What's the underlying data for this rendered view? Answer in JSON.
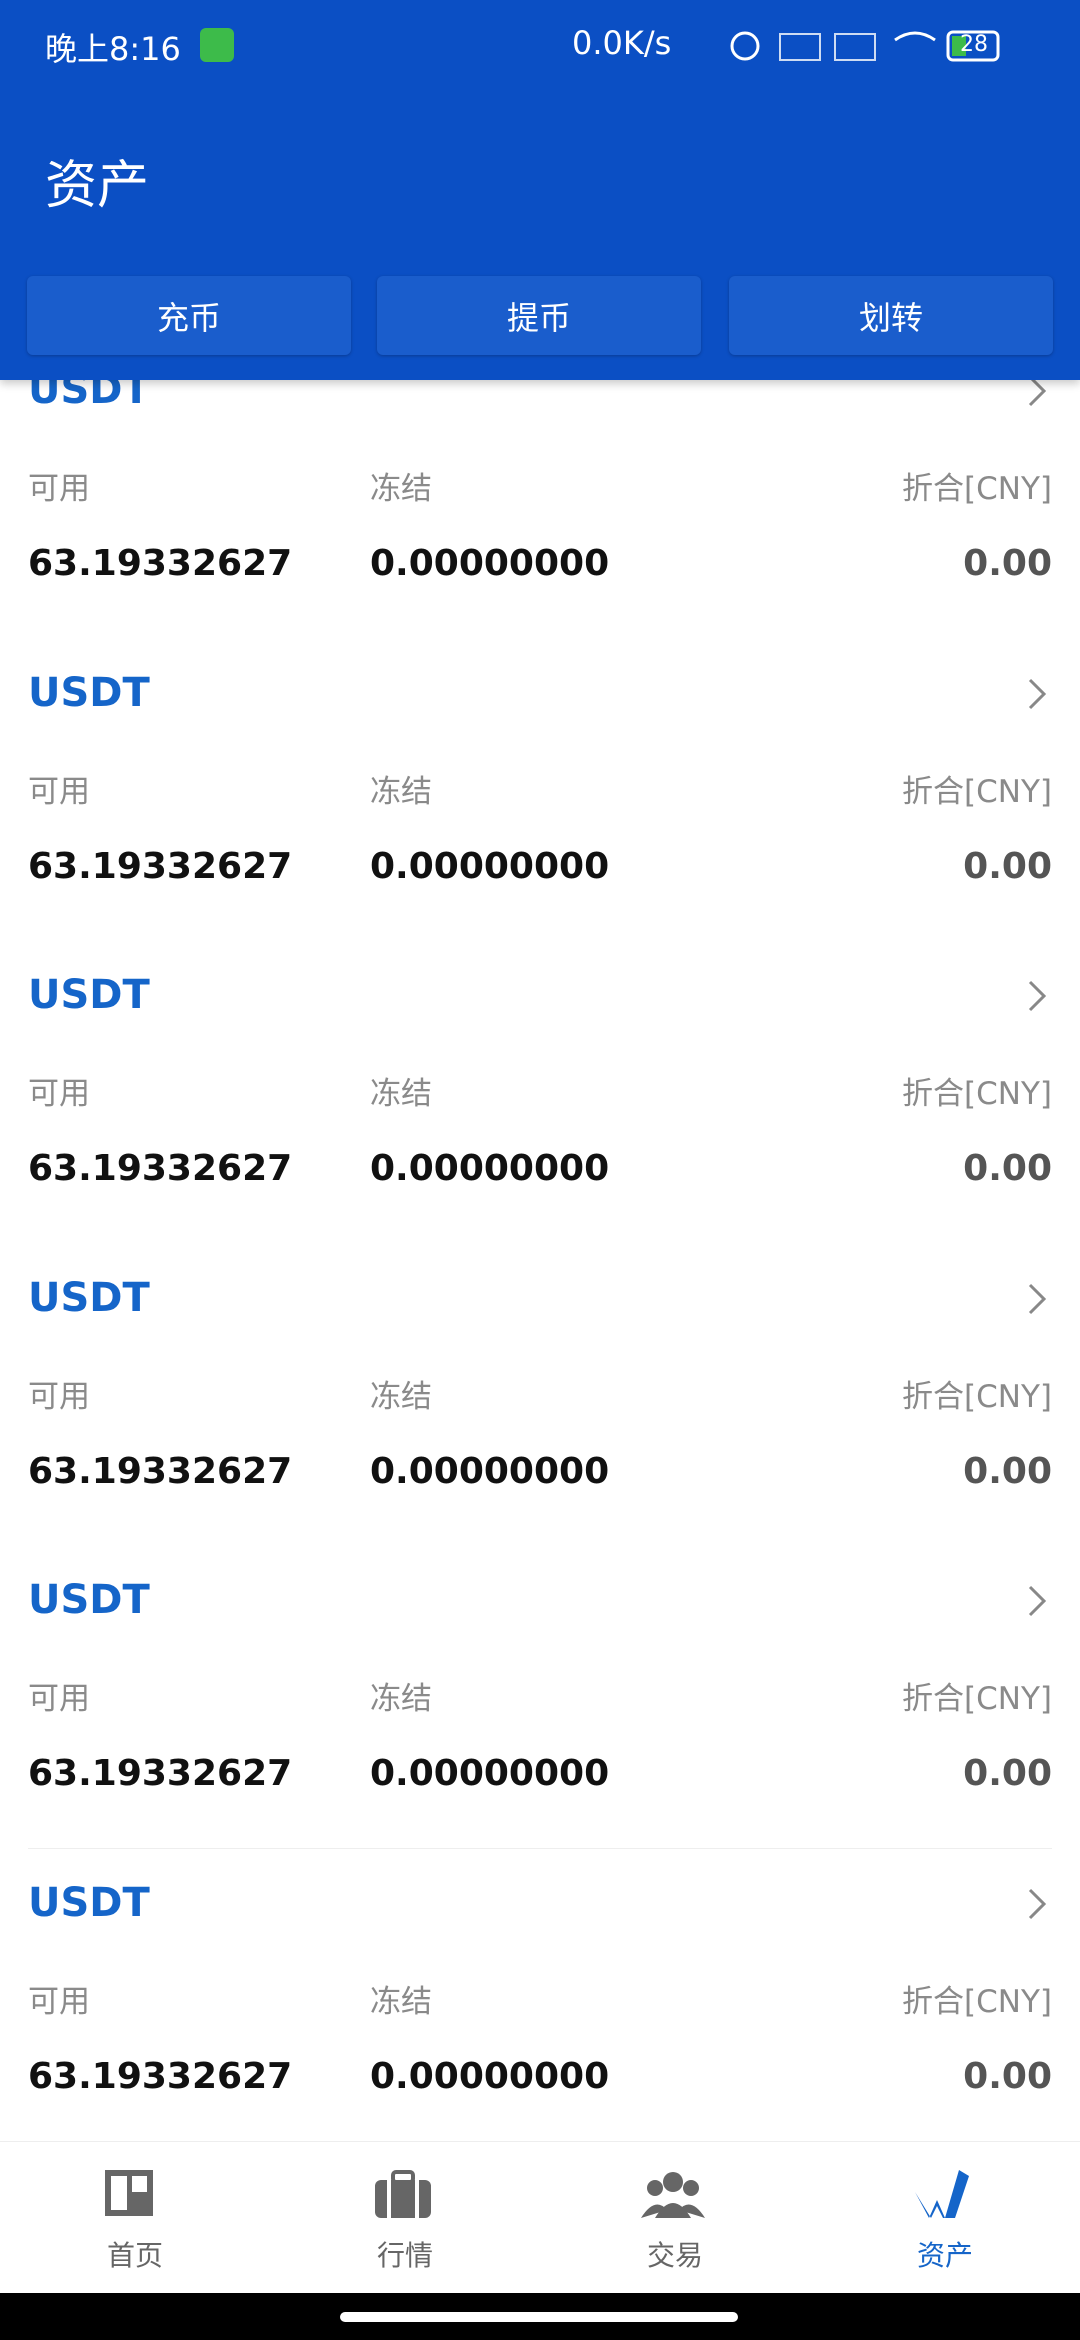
{
  "status_bar": {
    "time": "晚上8:16",
    "speed": "0.0K/s",
    "battery": "28"
  },
  "header": {
    "title": "资产",
    "buttons": [
      "充币",
      "提币",
      "划转"
    ]
  },
  "assets": [
    {
      "name": "USDT",
      "labels": [
        "可用",
        "冻结",
        "折合[CNY]"
      ],
      "available": "63.19332627",
      "frozen": "0.00000000",
      "cny": "0.00"
    },
    {
      "name": "USDT",
      "labels": [
        "可用",
        "冻结",
        "折合[CNY]"
      ],
      "available": "63.19332627",
      "frozen": "0.00000000",
      "cny": "0.00"
    },
    {
      "name": "USDT",
      "labels": [
        "可用",
        "冻结",
        "折合[CNY]"
      ],
      "available": "63.19332627",
      "frozen": "0.00000000",
      "cny": "0.00"
    },
    {
      "name": "USDT",
      "labels": [
        "可用",
        "冻结",
        "折合[CNY]"
      ],
      "available": "63.19332627",
      "frozen": "0.00000000",
      "cny": "0.00"
    },
    {
      "name": "USDT",
      "labels": [
        "可用",
        "冻结",
        "折合[CNY]"
      ],
      "available": "63.19332627",
      "frozen": "0.00000000",
      "cny": "0.00"
    },
    {
      "name": "USDT",
      "labels": [
        "可用",
        "冻结",
        "折合[CNY]"
      ],
      "available": "63.19332627",
      "frozen": "0.00000000",
      "cny": "0.00"
    }
  ],
  "nav": [
    "首页",
    "行情",
    "交易",
    "资产"
  ]
}
